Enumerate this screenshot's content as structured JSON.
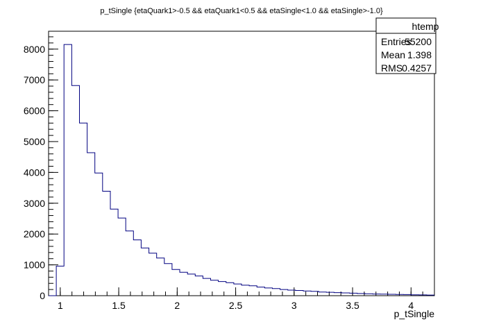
{
  "chart_data": {
    "type": "bar",
    "title": "p_tSingle {etaQuark1>-0.5 && etaQuark1<0.5 && etaSingle<1.0 && etaSingle>-1.0}",
    "xlabel": "p_tSingle",
    "ylabel": "",
    "xlim": [
      0.9,
      4.2
    ],
    "ylim": [
      0,
      8580
    ],
    "bin_width": 0.066,
    "bin_start": 0.9,
    "values": [
      0,
      960,
      8150,
      6820,
      5600,
      4640,
      3980,
      3390,
      2810,
      2520,
      2100,
      1810,
      1550,
      1380,
      1220,
      1040,
      850,
      760,
      700,
      640,
      560,
      500,
      460,
      420,
      380,
      340,
      320,
      280,
      250,
      230,
      200,
      180,
      170,
      150,
      140,
      120,
      110,
      100,
      90,
      80,
      70,
      60,
      55,
      50,
      45,
      40,
      35,
      30,
      25,
      20
    ],
    "xticks": [
      {
        "value": 1,
        "label": "1"
      },
      {
        "value": 1.5,
        "label": "1.5"
      },
      {
        "value": 2,
        "label": "2"
      },
      {
        "value": 2.5,
        "label": "2.5"
      },
      {
        "value": 3,
        "label": "3"
      },
      {
        "value": 3.5,
        "label": "3.5"
      },
      {
        "value": 4,
        "label": "4"
      }
    ],
    "yticks": [
      {
        "value": 0,
        "label": "0"
      },
      {
        "value": 1000,
        "label": "1000"
      },
      {
        "value": 2000,
        "label": "2000"
      },
      {
        "value": 3000,
        "label": "3000"
      },
      {
        "value": 4000,
        "label": "4000"
      },
      {
        "value": 5000,
        "label": "5000"
      },
      {
        "value": 6000,
        "label": "6000"
      },
      {
        "value": 7000,
        "label": "7000"
      },
      {
        "value": 8000,
        "label": "8000"
      }
    ],
    "x_minor_step": 0.1,
    "y_minor_step": 200,
    "grid": false,
    "line_color": "#000080",
    "stats_box": {
      "title": "htemp",
      "rows": [
        {
          "label": "Entries",
          "value": "55200"
        },
        {
          "label": "Mean",
          "value": "1.398"
        },
        {
          "label": "RMS",
          "value": "0.4257"
        }
      ],
      "placement": "top-right"
    }
  }
}
